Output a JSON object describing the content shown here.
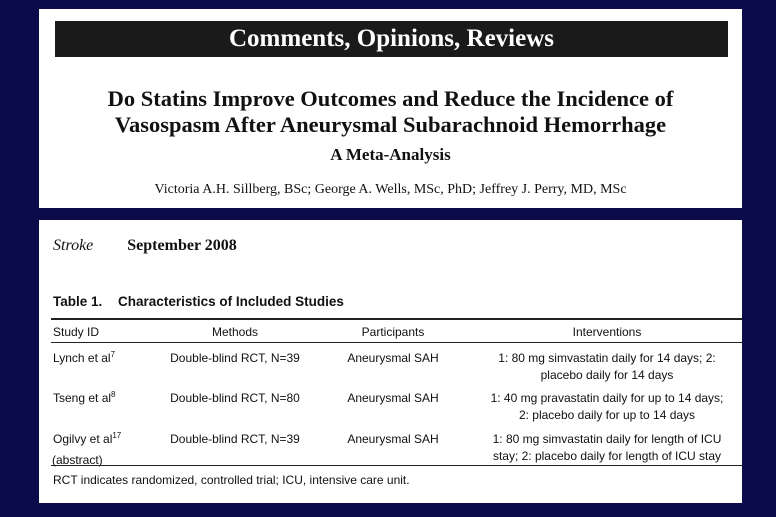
{
  "header": {
    "banner": "Comments, Opinions, Reviews",
    "title_line1": "Do Statins Improve Outcomes and Reduce the Incidence of",
    "title_line2": "Vasospasm After Aneurysmal Subarachnoid Hemorrhage",
    "subtitle": "A Meta-Analysis",
    "authors": "Victoria A.H. Sillberg, BSc; George A. Wells, MSc, PhD; Jeffrey J. Perry, MD, MSc"
  },
  "citation": {
    "journal": "Stroke",
    "date": "September 2008"
  },
  "table": {
    "label": "Table 1.",
    "caption": "Characteristics of Included Studies",
    "columns": [
      "Study ID",
      "Methods",
      "Participants",
      "Interventions"
    ],
    "rows": [
      {
        "study": "Lynch et al",
        "ref": "7",
        "methods": "Double-blind RCT, N=39",
        "participants": "Aneurysmal SAH",
        "interventions_line1": "1: 80 mg simvastatin daily for 14 days; 2:",
        "interventions_line2": "placebo daily for 14 days"
      },
      {
        "study": "Tseng et al",
        "ref": "8",
        "methods": "Double-blind RCT, N=80",
        "participants": "Aneurysmal SAH",
        "interventions_line1": "1: 40 mg pravastatin daily for up to 14 days;",
        "interventions_line2": "2: placebo daily for up to 14 days"
      },
      {
        "study": "Ogilvy et al",
        "ref": "17",
        "methods": "Double-blind RCT, N=39",
        "participants": "Aneurysmal SAH",
        "interventions_line1": "1: 80 mg simvastatin daily for length of ICU",
        "interventions_line2": "stay; 2: placebo daily for length of ICU stay"
      }
    ],
    "annotation": "(abstract)",
    "footnote": "RCT indicates randomized, controlled trial; ICU, intensive care unit."
  }
}
